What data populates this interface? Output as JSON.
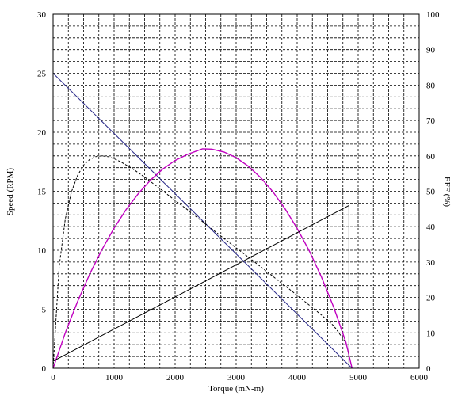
{
  "chart_data": {
    "type": "line",
    "title": "",
    "xlabel": "Torque (mN-m)",
    "ylabel": "Speed (RPM)",
    "y2label": "EFF (%)",
    "xlim": [
      0,
      6000
    ],
    "ylim": [
      0,
      30
    ],
    "y2lim": [
      0,
      100
    ],
    "grid": true,
    "legend": "none",
    "x_ticks": [
      "0",
      "1000",
      "2000",
      "3000",
      "4000",
      "5000",
      "6000"
    ],
    "y_ticks": [
      "0",
      "5",
      "10",
      "15",
      "20",
      "25",
      "30"
    ],
    "y2_ticks": [
      "0",
      "10",
      "20",
      "30",
      "40",
      "50",
      "60",
      "70",
      "80",
      "90",
      "100"
    ],
    "series": [
      {
        "axis": "left",
        "color": "#2a2a8a",
        "style": "solid",
        "x": [
          0,
          4900
        ],
        "y": [
          25,
          0
        ]
      },
      {
        "axis": "right",
        "color": "#000000",
        "style": "dashed",
        "x": [
          0,
          100,
          200,
          300,
          400,
          500,
          600,
          700,
          800,
          900,
          1000,
          1100,
          1200,
          1300,
          1400,
          1500,
          1600,
          1800,
          2000,
          2200,
          2400,
          2600,
          2800,
          3000,
          3200,
          3400,
          3600,
          3800,
          4000,
          4200,
          4400,
          4600,
          4800,
          4900
        ],
        "y": [
          0,
          28.8,
          42.2,
          49.8,
          54.4,
          57.4,
          59.0,
          59.8,
          60.0,
          59.8,
          59.2,
          58.4,
          57.4,
          56.4,
          55.2,
          54.0,
          52.7,
          50.1,
          47.4,
          44.8,
          42.1,
          39.4,
          36.7,
          34.0,
          31.4,
          28.7,
          26.0,
          23.3,
          20.6,
          17.8,
          15.0,
          12.0,
          7.2,
          0
        ]
      },
      {
        "axis": "right",
        "color": "#c000c0",
        "style": "solid",
        "x": [
          0,
          200,
          400,
          600,
          800,
          1000,
          1200,
          1400,
          1600,
          1800,
          2000,
          2200,
          2450,
          2600,
          2800,
          3000,
          3200,
          3400,
          3600,
          3800,
          4000,
          4200,
          4400,
          4600,
          4800,
          4900
        ],
        "y": [
          0,
          10.0,
          18.8,
          26.6,
          33.5,
          39.6,
          44.9,
          49.4,
          53.2,
          56.3,
          58.7,
          60.4,
          62.0,
          61.9,
          61.1,
          59.5,
          57.1,
          53.9,
          49.9,
          45.1,
          39.5,
          33.1,
          25.7,
          17.2,
          7.3,
          0
        ]
      },
      {
        "axis": "right",
        "color": "#000000",
        "style": "solid",
        "x": [
          0,
          4850,
          4850,
          4900
        ],
        "y": [
          2,
          46,
          0,
          0
        ]
      }
    ]
  }
}
